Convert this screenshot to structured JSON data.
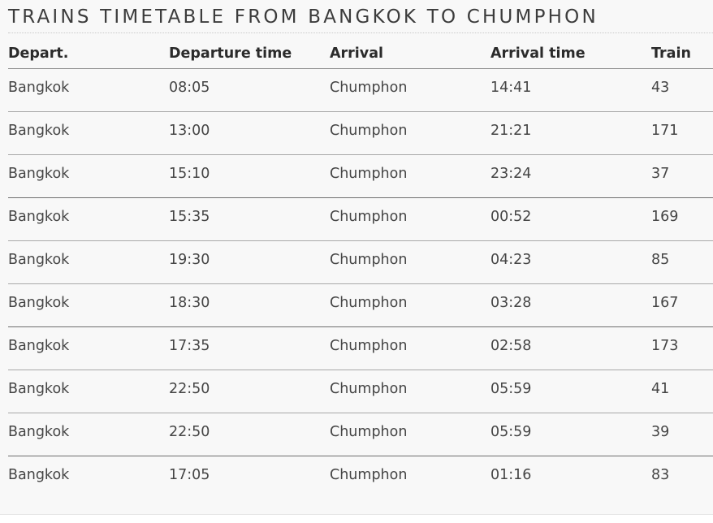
{
  "title": "TRAINS TIMETABLE FROM BANGKOK TO CHUMPHON",
  "columns": {
    "depart": "Depart.",
    "departure_time": "Departure time",
    "arrival": "Arrival",
    "arrival_time": "Arrival time",
    "train": "Train"
  },
  "rows": [
    {
      "depart": "Bangkok",
      "departure_time": "08:05",
      "arrival": "Chumphon",
      "arrival_time": "14:41",
      "train": "43"
    },
    {
      "depart": "Bangkok",
      "departure_time": "13:00",
      "arrival": "Chumphon",
      "arrival_time": "21:21",
      "train": "171"
    },
    {
      "depart": "Bangkok",
      "departure_time": "15:10",
      "arrival": "Chumphon",
      "arrival_time": "23:24",
      "train": "37"
    },
    {
      "depart": "Bangkok",
      "departure_time": "15:35",
      "arrival": "Chumphon",
      "arrival_time": "00:52",
      "train": "169"
    },
    {
      "depart": "Bangkok",
      "departure_time": "19:30",
      "arrival": "Chumphon",
      "arrival_time": "04:23",
      "train": "85"
    },
    {
      "depart": "Bangkok",
      "departure_time": "18:30",
      "arrival": "Chumphon",
      "arrival_time": "03:28",
      "train": "167"
    },
    {
      "depart": "Bangkok",
      "departure_time": "17:35",
      "arrival": "Chumphon",
      "arrival_time": "02:58",
      "train": "173"
    },
    {
      "depart": "Bangkok",
      "departure_time": "22:50",
      "arrival": "Chumphon",
      "arrival_time": "05:59",
      "train": "41"
    },
    {
      "depart": "Bangkok",
      "departure_time": "22:50",
      "arrival": "Chumphon",
      "arrival_time": "05:59",
      "train": "39"
    },
    {
      "depart": "Bangkok",
      "departure_time": "17:05",
      "arrival": "Chumphon",
      "arrival_time": "01:16",
      "train": "83"
    }
  ]
}
